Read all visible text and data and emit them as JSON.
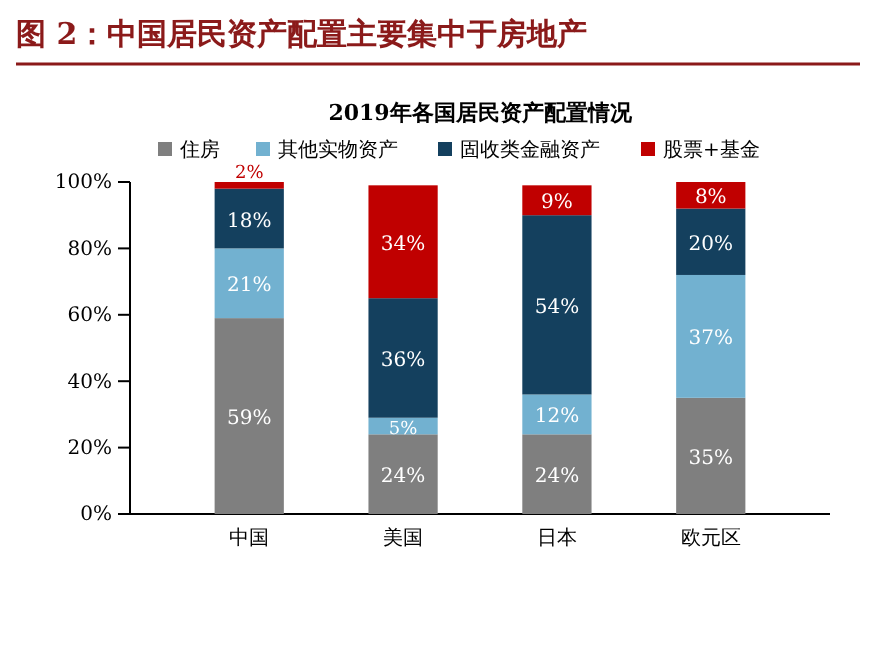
{
  "chart_data": {
    "type": "bar",
    "title": "图 2：中国居民资产配置主要集中于房地产",
    "subtitle": "2019年各国居民资产配置情况",
    "categories": [
      "中国",
      "美国",
      "日本",
      "欧元区"
    ],
    "stacked": true,
    "legend": "top",
    "ylim": [
      0,
      100
    ],
    "yticks": [
      {
        "value": 0,
        "label": "0%"
      },
      {
        "value": 20,
        "label": "20%"
      },
      {
        "value": 40,
        "label": "40%"
      },
      {
        "value": 60,
        "label": "60%"
      },
      {
        "value": 80,
        "label": "80%"
      },
      {
        "value": 100,
        "label": "100%"
      }
    ],
    "series": [
      {
        "name": "住房",
        "color": "#7f7f7f",
        "values": [
          59,
          24,
          24,
          35
        ],
        "value_labels": [
          "59%",
          "24%",
          "24%",
          "35%"
        ]
      },
      {
        "name": "其他实物资产",
        "color": "#72b1d0",
        "values": [
          21,
          5,
          12,
          37
        ],
        "value_labels": [
          "21%",
          "5%",
          "12%",
          "37%"
        ]
      },
      {
        "name": "固收类金融资产",
        "color": "#14405e",
        "values": [
          18,
          36,
          54,
          20
        ],
        "value_labels": [
          "18%",
          "36%",
          "54%",
          "20%"
        ]
      },
      {
        "name": "股票+基金",
        "color": "#c00000",
        "values": [
          2,
          34,
          9,
          8
        ],
        "value_labels": [
          "2%",
          "34%",
          "9%",
          "8%"
        ]
      }
    ]
  }
}
